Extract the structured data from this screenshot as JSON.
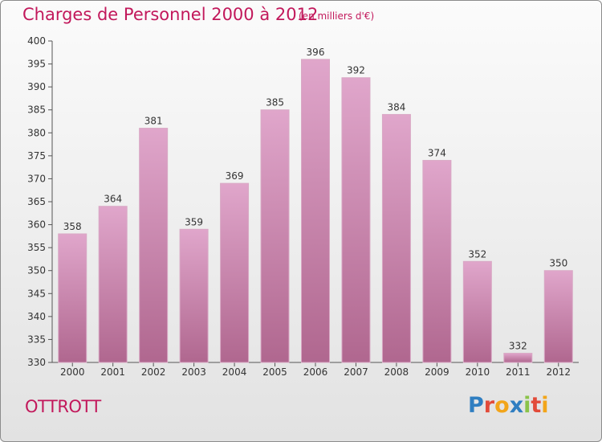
{
  "title": "Charges de Personnel 2000 à 2012",
  "subtitle": "(en milliers d'€)",
  "commune": "OTTROTT",
  "logo": {
    "letters": [
      {
        "ch": "P",
        "color": "#2f7ec1"
      },
      {
        "ch": "r",
        "color": "#e24b3a"
      },
      {
        "ch": "o",
        "color": "#f2a51a"
      },
      {
        "ch": "x",
        "color": "#2f7ec1"
      },
      {
        "ch": "i",
        "color": "#8bc34a"
      },
      {
        "ch": "t",
        "color": "#e24b3a"
      },
      {
        "ch": "i",
        "color": "#f2a51a"
      }
    ]
  },
  "colors": {
    "title": "#c2185b",
    "bar_top": "#e0a6cb",
    "bar_bottom": "#b0678f",
    "axis": "#555555",
    "grid": "#cfcfcf"
  },
  "chart_data": {
    "type": "bar",
    "categories": [
      "2000",
      "2001",
      "2002",
      "2003",
      "2004",
      "2005",
      "2006",
      "2007",
      "2008",
      "2009",
      "2010",
      "2011",
      "2012"
    ],
    "values": [
      358,
      364,
      381,
      359,
      369,
      385,
      396,
      392,
      384,
      374,
      352,
      332,
      350
    ],
    "title": "Charges de Personnel 2000 à 2012",
    "xlabel": "",
    "ylabel": "",
    "ylim": [
      330,
      400
    ],
    "yticks": [
      330,
      335,
      340,
      345,
      350,
      355,
      360,
      365,
      370,
      375,
      380,
      385,
      390,
      395,
      400
    ],
    "grid": false,
    "data_labels": true
  }
}
